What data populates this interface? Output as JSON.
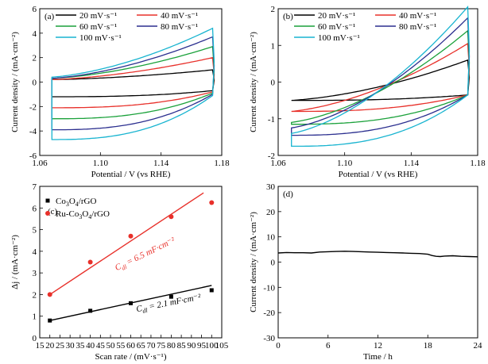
{
  "chart_data": [
    {
      "panel": "(a)",
      "type": "line",
      "xlabel": "Potential / V (vs RHE)",
      "ylabel": "Current density / (mA·cm⁻²)",
      "xlim": [
        1.06,
        1.18
      ],
      "ylim": [
        -6,
        6
      ],
      "xticks": [
        "1.06",
        "1.10",
        "1.14",
        "1.18"
      ],
      "yticks": [
        "-6",
        "-4",
        "-2",
        "0",
        "2",
        "4",
        "6"
      ],
      "legend_position": "top",
      "series": [
        {
          "name": "20 mV·s⁻¹",
          "color": "#000000",
          "x_range": [
            1.068,
            1.174
          ],
          "upper_low": 0.2,
          "upper_high": 1.0,
          "lower_low": -1.2,
          "lower_high": -0.7
        },
        {
          "name": "40 mV·s⁻¹",
          "color": "#e8302a",
          "x_range": [
            1.068,
            1.174
          ],
          "upper_low": 0.2,
          "upper_high": 2.0,
          "lower_low": -2.1,
          "lower_high": -0.8
        },
        {
          "name": "60 mV·s⁻¹",
          "color": "#1aa13a",
          "x_range": [
            1.068,
            1.174
          ],
          "upper_low": 0.3,
          "upper_high": 2.9,
          "lower_low": -3.0,
          "lower_high": -0.9
        },
        {
          "name": "80 mV·s⁻¹",
          "color": "#2b2f8f",
          "x_range": [
            1.068,
            1.174
          ],
          "upper_low": 0.3,
          "upper_high": 3.7,
          "lower_low": -3.9,
          "lower_high": -1.0
        },
        {
          "name": "100 mV·s⁻¹",
          "color": "#18b4d0",
          "x_range": [
            1.068,
            1.174
          ],
          "upper_low": 0.4,
          "upper_high": 4.4,
          "lower_low": -4.7,
          "lower_high": -1.1
        }
      ]
    },
    {
      "panel": "(b)",
      "type": "line",
      "xlabel": "Potential / V (vs RHE)",
      "ylabel": "Current density / (mA·cm⁻²)",
      "xlim": [
        1.06,
        1.18
      ],
      "ylim": [
        -2.0,
        2.0
      ],
      "xticks": [
        "1.06",
        "1.10",
        "1.14",
        "1.18"
      ],
      "yticks": [
        "-2",
        "-1",
        "0",
        "1",
        "2"
      ],
      "legend_position": "top",
      "series": [
        {
          "name": "20 mV·s⁻¹",
          "color": "#000000",
          "x_range": [
            1.068,
            1.174
          ],
          "upper_low": -0.5,
          "upper_high": 0.6,
          "lower_low": -0.5,
          "lower_high": -0.35
        },
        {
          "name": "40 mV·s⁻¹",
          "color": "#e8302a",
          "x_range": [
            1.068,
            1.174
          ],
          "upper_low": -0.8,
          "upper_high": 1.05,
          "lower_low": -0.8,
          "lower_high": -0.35
        },
        {
          "name": "60 mV·s⁻¹",
          "color": "#1aa13a",
          "x_range": [
            1.068,
            1.174
          ],
          "upper_low": -1.1,
          "upper_high": 1.4,
          "lower_low": -1.15,
          "lower_high": -0.35
        },
        {
          "name": "80 mV·s⁻¹",
          "color": "#2b2f8f",
          "x_range": [
            1.068,
            1.174
          ],
          "upper_low": -1.25,
          "upper_high": 1.75,
          "lower_low": -1.45,
          "lower_high": -0.35
        },
        {
          "name": "100 mV·s⁻¹",
          "color": "#18b4d0",
          "x_range": [
            1.068,
            1.174
          ],
          "upper_low": -1.4,
          "upper_high": 2.05,
          "lower_low": -1.75,
          "lower_high": -0.35
        }
      ]
    },
    {
      "panel": "(c)",
      "type": "scatter",
      "xlabel": "Scan rate / (mV·s⁻¹)",
      "ylabel": "Δj / (mA·cm⁻²)",
      "xlim": [
        15,
        105
      ],
      "ylim": [
        0,
        7
      ],
      "xticks": [
        "15",
        "20",
        "25",
        "30",
        "35",
        "40",
        "45",
        "50",
        "55",
        "60",
        "65",
        "70",
        "75",
        "80",
        "85",
        "90",
        "95",
        "100",
        "105"
      ],
      "xtick_values": [
        15,
        20,
        25,
        30,
        35,
        40,
        45,
        50,
        55,
        60,
        65,
        70,
        75,
        80,
        85,
        90,
        95,
        100,
        105
      ],
      "yticks": [
        "0",
        "1",
        "2",
        "3",
        "4",
        "5",
        "6",
        "7"
      ],
      "legend_position": "top-left",
      "series": [
        {
          "name": "Co3O4/rGO",
          "name_main": "Co",
          "name_sub1": "3",
          "name_mid": "O",
          "name_sub2": "4",
          "name_tail": "/rGO",
          "marker": "square",
          "color": "#000000",
          "x": [
            20,
            40,
            60,
            80,
            100
          ],
          "y": [
            0.8,
            1.25,
            1.6,
            1.9,
            2.2
          ],
          "fit": [
            [
              20,
              0.8
            ],
            [
              100,
              2.42
            ]
          ],
          "fit_label_main": "C",
          "fit_label_sub": "dl",
          "fit_label_tail": " = 2.1 mF·cm⁻²"
        },
        {
          "name": "Ru-Co3O4/rGO",
          "name_main": "Ru-Co",
          "name_sub1": "3",
          "name_mid": "O",
          "name_sub2": "4",
          "name_tail": "/rGO",
          "marker": "circle",
          "color": "#e8302a",
          "x": [
            20,
            40,
            60,
            80,
            100
          ],
          "y": [
            2.0,
            3.5,
            4.7,
            5.6,
            6.25
          ],
          "fit": [
            [
              20,
              2.0
            ],
            [
              96,
              6.7
            ]
          ],
          "fit_label_main": "C",
          "fit_label_sub": "dl",
          "fit_label_tail": " = 6.5 mF·cm⁻²"
        }
      ]
    },
    {
      "panel": "(d)",
      "type": "line",
      "xlabel": "Time / h",
      "ylabel": "Current density / (mA·cm⁻²)",
      "xlim": [
        0,
        24
      ],
      "ylim": [
        -30,
        30
      ],
      "xticks": [
        "0",
        "6",
        "12",
        "18",
        "24"
      ],
      "yticks": [
        "-30",
        "-20",
        "-10",
        "0",
        "10",
        "20",
        "30"
      ],
      "series": [
        {
          "color": "#000000",
          "x": [
            0,
            1,
            2,
            3,
            4,
            5,
            6,
            7,
            8,
            9,
            10,
            11,
            12,
            13,
            14,
            15,
            16,
            17,
            18,
            18.5,
            19,
            19.5,
            20,
            21,
            22,
            23,
            24
          ],
          "y": [
            3.6,
            3.8,
            3.7,
            3.7,
            3.6,
            4.0,
            4.1,
            4.2,
            4.3,
            4.2,
            4.1,
            4.0,
            3.9,
            3.8,
            3.7,
            3.6,
            3.5,
            3.4,
            3.1,
            2.6,
            2.3,
            2.2,
            2.4,
            2.5,
            2.3,
            2.2,
            2.1
          ]
        }
      ]
    }
  ]
}
